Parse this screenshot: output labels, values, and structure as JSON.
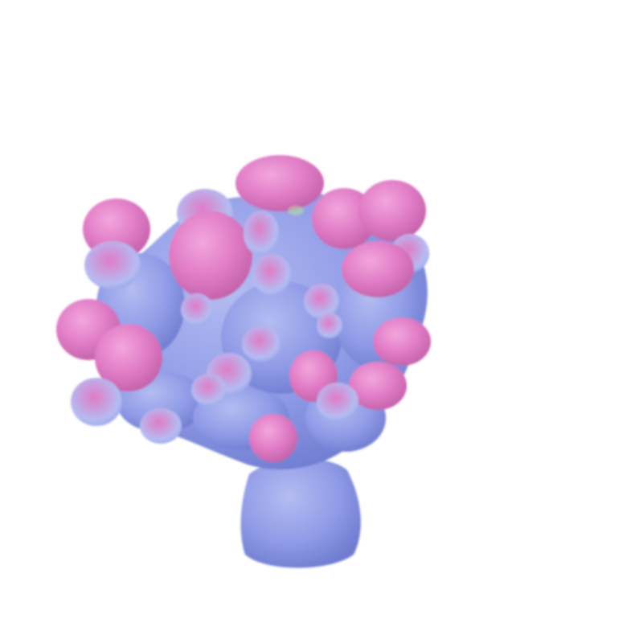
{
  "render": {
    "background_color": "#ffffff",
    "coral": {
      "body_color": "#8f9be6",
      "body_shadow_color": "#6f7cd0",
      "body_highlight_color": "#b4bcf2",
      "tip_color": "#e07cc6",
      "tip_highlight_color": "#f3a6dd",
      "tip_shadow_color": "#c160a8",
      "accent_color": "#b9e6a0"
    }
  }
}
